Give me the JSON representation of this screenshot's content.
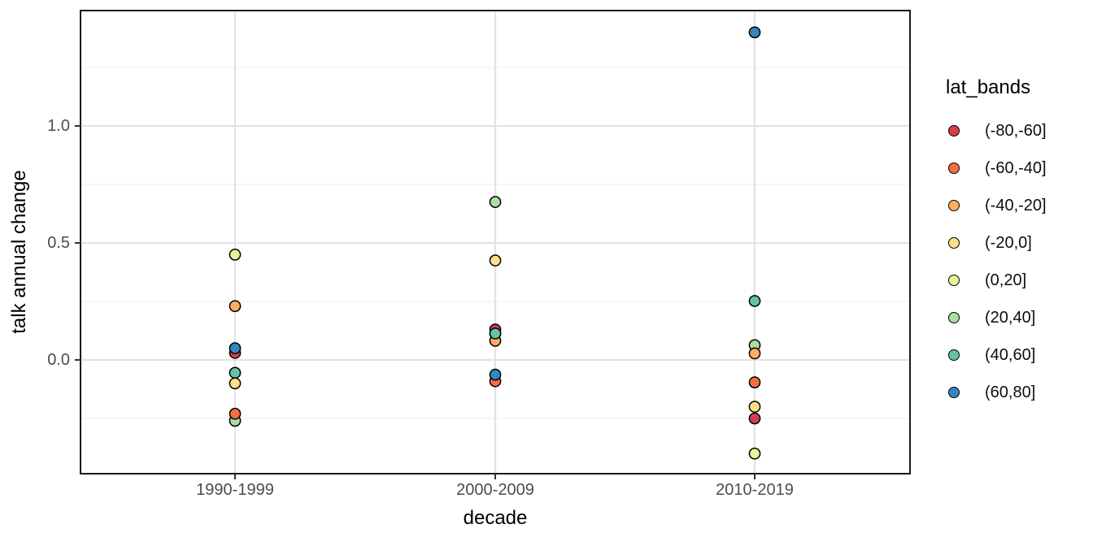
{
  "chart_data": {
    "type": "scatter",
    "xlabel": "decade",
    "ylabel": "talk annual change",
    "categories": [
      "1990-1999",
      "2000-2009",
      "2010-2019"
    ],
    "y_ticks": [
      {
        "label": "0.0",
        "value": 0.0
      },
      {
        "label": "0.5",
        "value": 0.5
      },
      {
        "label": "1.0",
        "value": 1.0
      }
    ],
    "y_minor_ticks": [
      -0.25,
      0.25,
      0.75,
      1.25
    ],
    "ylim": [
      -0.49,
      1.49
    ],
    "grid": "on",
    "legend": {
      "title": "lat_bands",
      "position": "right",
      "entries": [
        {
          "label": "(-80,-60]",
          "color": "#d53e4f"
        },
        {
          "label": "(-60,-40]",
          "color": "#f46d43"
        },
        {
          "label": "(-40,-20]",
          "color": "#fdae61"
        },
        {
          "label": "(-20,0]",
          "color": "#fee08b"
        },
        {
          "label": "(0,20]",
          "color": "#e6f598"
        },
        {
          "label": "(20,40]",
          "color": "#abdda4"
        },
        {
          "label": "(40,60]",
          "color": "#66c2a5"
        },
        {
          "label": "(60,80]",
          "color": "#3288bd"
        }
      ]
    },
    "series": [
      {
        "name": "(-80,-60]",
        "color": "#d53e4f",
        "values": [
          0.03,
          0.13,
          -0.25
        ]
      },
      {
        "name": "(-60,-40]",
        "color": "#f46d43",
        "values": [
          -0.23,
          -0.091,
          -0.096
        ]
      },
      {
        "name": "(-40,-20]",
        "color": "#fdae61",
        "values": [
          0.23,
          0.082,
          0.028
        ]
      },
      {
        "name": "(-20,0]",
        "color": "#fee08b",
        "values": [
          -0.1,
          0.425,
          -0.2
        ]
      },
      {
        "name": "(0,20]",
        "color": "#e6f598",
        "values": [
          0.45,
          0.113,
          -0.4
        ]
      },
      {
        "name": "(20,40]",
        "color": "#abdda4",
        "values": [
          -0.26,
          0.675,
          0.063
        ]
      },
      {
        "name": "(40,60]",
        "color": "#66c2a5",
        "values": [
          -0.055,
          0.113,
          0.252
        ]
      },
      {
        "name": "(60,80]",
        "color": "#3288bd",
        "values": [
          0.05,
          -0.063,
          1.4
        ]
      }
    ],
    "points_paint_order": [
      {
        "decade": "1990-1999",
        "band": "(0,20]",
        "value": 0.45
      },
      {
        "decade": "1990-1999",
        "band": "(-40,-20]",
        "value": 0.23
      },
      {
        "decade": "1990-1999",
        "band": "(-80,-60]",
        "value": 0.03
      },
      {
        "decade": "1990-1999",
        "band": "(60,80]",
        "value": 0.05
      },
      {
        "decade": "1990-1999",
        "band": "(40,60]",
        "value": -0.055
      },
      {
        "decade": "1990-1999",
        "band": "(-20,0]",
        "value": -0.1
      },
      {
        "decade": "1990-1999",
        "band": "(20,40]",
        "value": -0.26
      },
      {
        "decade": "1990-1999",
        "band": "(-60,-40]",
        "value": -0.23
      },
      {
        "decade": "2000-2009",
        "band": "(20,40]",
        "value": 0.675
      },
      {
        "decade": "2000-2009",
        "band": "(-20,0]",
        "value": 0.425
      },
      {
        "decade": "2000-2009",
        "band": "(0,20]",
        "value": 0.113
      },
      {
        "decade": "2000-2009",
        "band": "(-80,-60]",
        "value": 0.13
      },
      {
        "decade": "2000-2009",
        "band": "(-40,-20]",
        "value": 0.082
      },
      {
        "decade": "2000-2009",
        "band": "(40,60]",
        "value": 0.113
      },
      {
        "decade": "2000-2009",
        "band": "(-60,-40]",
        "value": -0.091
      },
      {
        "decade": "2000-2009",
        "band": "(60,80]",
        "value": -0.063
      },
      {
        "decade": "2010-2019",
        "band": "(60,80]",
        "value": 1.4
      },
      {
        "decade": "2010-2019",
        "band": "(40,60]",
        "value": 0.252
      },
      {
        "decade": "2010-2019",
        "band": "(20,40]",
        "value": 0.063
      },
      {
        "decade": "2010-2019",
        "band": "(-40,-20]",
        "value": 0.028
      },
      {
        "decade": "2010-2019",
        "band": "(-60,-40]",
        "value": -0.096
      },
      {
        "decade": "2010-2019",
        "band": "(-80,-60]",
        "value": -0.25
      },
      {
        "decade": "2010-2019",
        "band": "(-20,0]",
        "value": -0.2
      },
      {
        "decade": "2010-2019",
        "band": "(0,20]",
        "value": -0.4
      }
    ],
    "colors": {
      "panel_background": "#ffffff",
      "panel_border": "#1a1a1a",
      "grid_major": "#e3e3e3",
      "grid_minor": "#f0f0f0",
      "tick_mark": "#333333",
      "tick_text": "#4d4d4d",
      "point_outline": "#000000"
    }
  }
}
